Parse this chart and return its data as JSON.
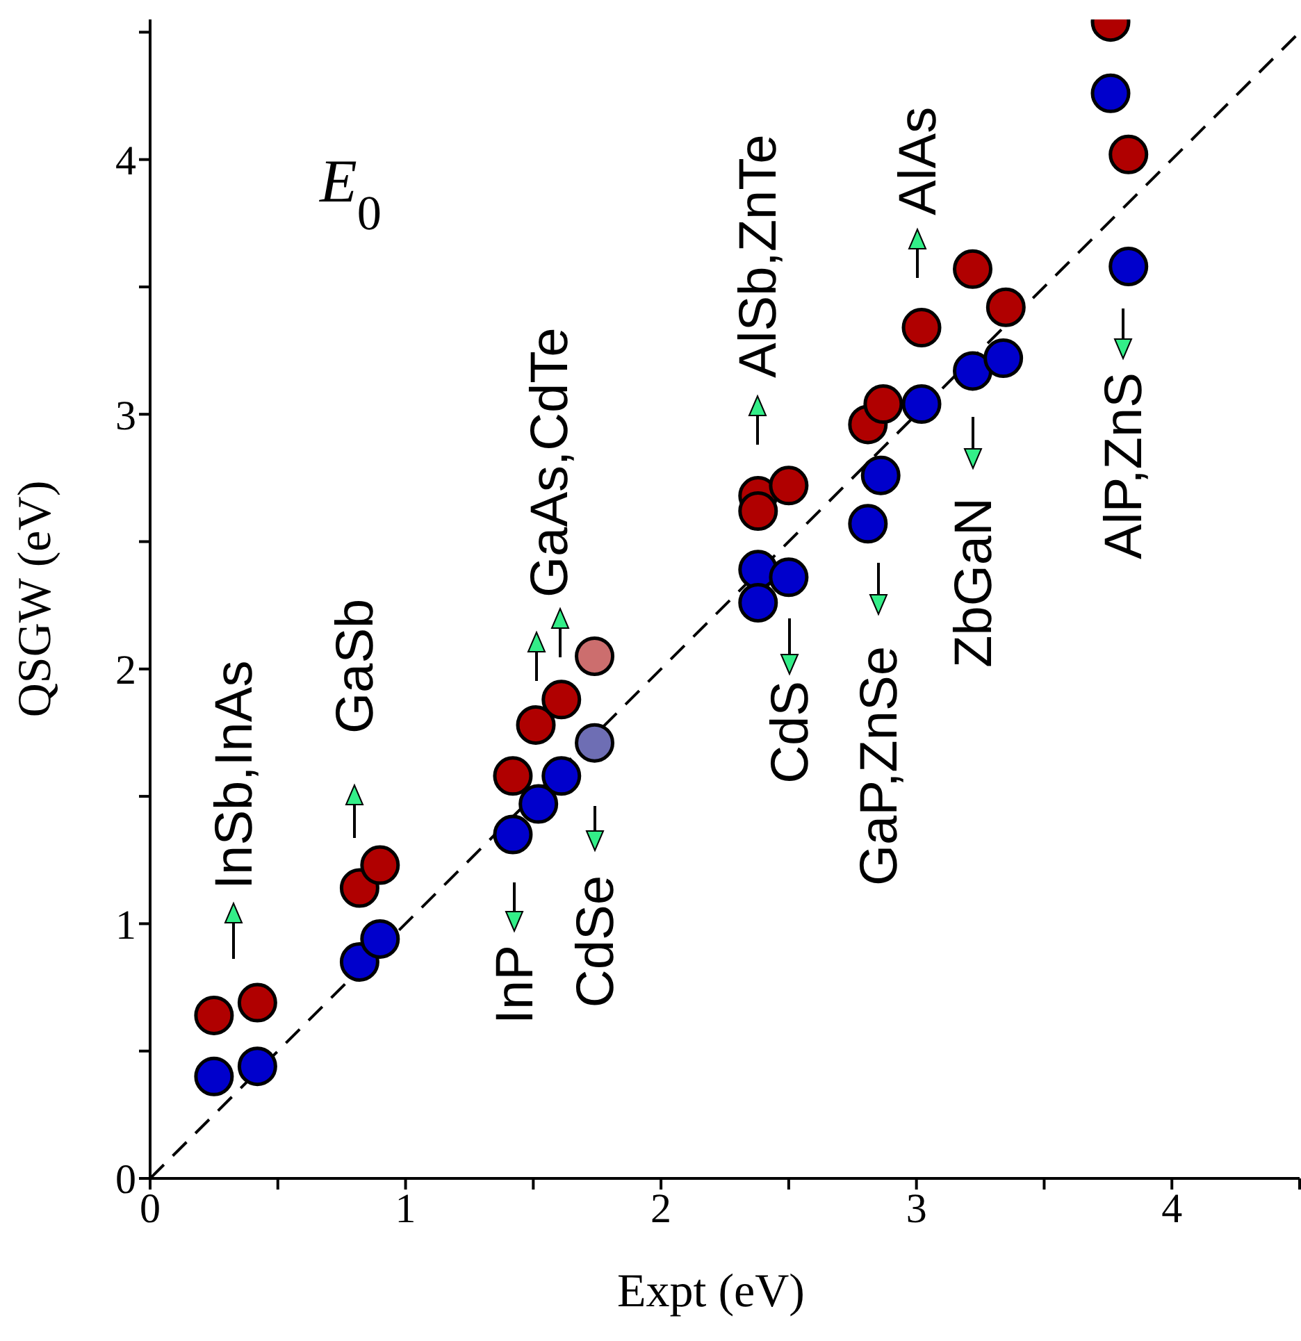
{
  "chart_data": {
    "type": "scatter",
    "xlabel": "Expt (eV)",
    "ylabel": "QSGW (eV)",
    "xlim": [
      0,
      4.5
    ],
    "ylim": [
      0,
      4.55
    ],
    "xticks": [
      0,
      {
        "value": 0.5,
        "label": null
      },
      1,
      {
        "value": 1.5,
        "label": null
      },
      2,
      {
        "value": 2.5,
        "label": null
      },
      3,
      {
        "value": 3.5,
        "label": null
      },
      4,
      {
        "value": 4.5,
        "label": null
      }
    ],
    "yticks": [
      0,
      {
        "value": 0.5,
        "label": null
      },
      1,
      {
        "value": 1.5,
        "label": null
      },
      2,
      {
        "value": 2.5,
        "label": null
      },
      3,
      {
        "value": 3.5,
        "label": null
      },
      4,
      {
        "value": 4.5,
        "label": null
      }
    ],
    "marker": "circle",
    "grid": false,
    "annotations": [
      "InSb,InAs",
      "GaSb",
      "GaAs,CdTe",
      "InP",
      "CdSe",
      "AlSb,ZnTe",
      "CdS",
      "GaP,ZnSe",
      "ZbGaN",
      "AlAs",
      "AlP,ZnS",
      "E$_{0}$"
    ],
    "series": [
      {
        "type": "line",
        "color": "#000000",
        "line_style": "dashed",
        "marker": "none",
        "x": [
          0,
          4.5
        ],
        "values": [
          0,
          4.5
        ]
      },
      {
        "color": "#b00000",
        "x": [
          0.25,
          0.42,
          0.82,
          0.9,
          1.42,
          1.51,
          1.61,
          1.74,
          2.38,
          2.38,
          2.5,
          2.81,
          2.87,
          3.02,
          3.22,
          3.35,
          3.76,
          3.83
        ],
        "values": [
          0.64,
          0.69,
          1.14,
          1.23,
          1.58,
          1.78,
          1.88,
          2.05,
          2.68,
          2.62,
          2.72,
          2.96,
          3.04,
          3.34,
          3.57,
          3.42,
          4.54,
          4.02
        ],
        "colors": [
          "#b00000",
          "#b00000",
          "#b00000",
          "#b00000",
          "#b00000",
          "#b00000",
          "#b00000",
          "#cc6e6e",
          "#b00000",
          "#b00000",
          "#b00000",
          "#b00000",
          "#b00000",
          "#b00000",
          "#b00000",
          "#b00000",
          "#b00000",
          "#b00000"
        ]
      },
      {
        "color": "#0000cc",
        "x": [
          0.25,
          0.42,
          0.82,
          0.9,
          1.42,
          1.52,
          1.61,
          1.74,
          2.38,
          2.38,
          2.5,
          2.81,
          2.86,
          3.02,
          3.22,
          3.34,
          3.76,
          3.83
        ],
        "values": [
          0.4,
          0.44,
          0.85,
          0.94,
          1.35,
          1.47,
          1.58,
          1.71,
          2.39,
          2.26,
          2.36,
          2.57,
          2.76,
          3.04,
          3.17,
          3.22,
          4.26,
          3.58
        ],
        "colors": [
          "#0000cc",
          "#0000cc",
          "#0000cc",
          "#0000cc",
          "#0000cc",
          "#0000cc",
          "#0000cc",
          "#6e6eb4",
          "#0000cc",
          "#0000cc",
          "#0000cc",
          "#0000cc",
          "#0000cc",
          "#0000cc",
          "#0000cc",
          "#0000cc",
          "#0000cc",
          "#0000cc"
        ]
      }
    ]
  }
}
